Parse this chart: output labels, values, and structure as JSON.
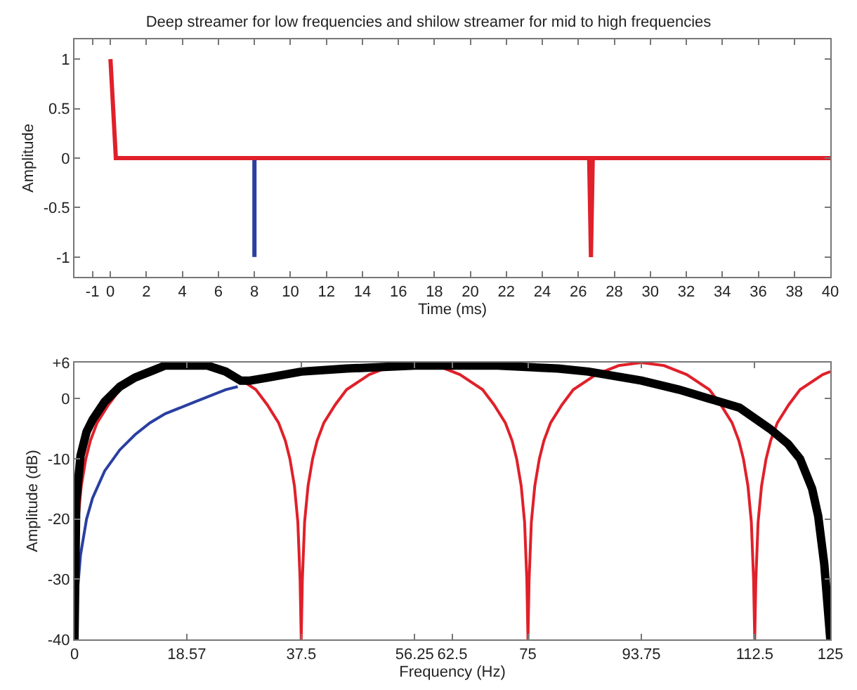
{
  "chart_data": [
    {
      "type": "line",
      "title": "Deep streamer for low frequencies and shilow streamer for mid to high frequencies",
      "xlabel": "Time (ms)",
      "ylabel": "Amplitude",
      "xlim": [
        -2,
        40
      ],
      "xticks": [
        -1,
        0,
        2,
        4,
        6,
        8,
        10,
        12,
        14,
        16,
        18,
        20,
        22,
        24,
        26,
        28,
        30,
        32,
        34,
        36,
        38,
        40
      ],
      "ylim": [
        -1.2,
        1.2
      ],
      "yticks": [
        -1,
        -0.5,
        0,
        0.5,
        1
      ],
      "grid": false,
      "marker": "none",
      "line_style": "solid",
      "series": [
        {
          "color": "#2a3fa0",
          "x": [
            8,
            8
          ],
          "values": [
            0,
            -1
          ]
        },
        {
          "color": "#e0202a",
          "x": [
            0,
            0.3,
            26.6,
            26.7,
            26.8,
            40
          ],
          "values": [
            1,
            0,
            0,
            -1,
            0,
            0
          ]
        }
      ]
    },
    {
      "type": "line",
      "xlabel": "Frequency (Hz)",
      "ylabel": "Amplitude (dB)",
      "xlim": [
        0,
        125
      ],
      "xticks": [
        0,
        18.57,
        37.5,
        56.25,
        62.5,
        75,
        93.75,
        112.5,
        125
      ],
      "ylim": [
        -40,
        6
      ],
      "yticks": [
        -40,
        -30,
        -20,
        -10,
        0,
        {
          "value": 6,
          "label": "+6"
        }
      ],
      "grid": false,
      "marker": "none",
      "line_style": "solid",
      "series": [
        {
          "color": "#e0202a",
          "x": [
            0,
            0.19,
            0.56,
            1.13,
            1.88,
            2.63,
            3.75,
            5.63,
            7.5,
            11.25,
            15,
            18.75,
            22.5,
            26.25,
            30,
            31.88,
            33.75,
            34.88,
            35.63,
            36.38,
            36.94,
            37.31,
            37.5,
            37.69,
            38.06,
            38.63,
            39.38,
            40.13,
            41.25,
            43.13,
            45,
            48.75,
            52.5,
            56.25,
            60,
            63.75,
            67.5,
            69.38,
            71.25,
            72.38,
            73.13,
            73.88,
            74.44,
            74.81,
            75,
            75.19,
            75.56,
            76.13,
            76.88,
            77.63,
            78.75,
            80.63,
            82.5,
            86.25,
            90,
            93.75,
            97.5,
            101.25,
            105,
            106.88,
            108.75,
            109.88,
            110.63,
            111.38,
            111.94,
            112.31,
            112.5,
            112.69,
            113.06,
            113.63,
            114.38,
            115.13,
            116.25,
            118.13,
            120,
            123.75,
            125
          ],
          "values": [
            -40,
            -30,
            -20.5,
            -14.5,
            -10,
            -7,
            -4,
            -1,
            1.5,
            4,
            5.5,
            6,
            5.5,
            4,
            1.5,
            -1,
            -4,
            -7,
            -10,
            -14.5,
            -20.5,
            -30,
            -40,
            -30,
            -20.5,
            -14.5,
            -10,
            -7,
            -4,
            -1,
            1.5,
            4,
            5.5,
            6,
            5.5,
            4,
            1.5,
            -1,
            -4,
            -7,
            -10,
            -14.5,
            -20.5,
            -30,
            -40,
            -30,
            -20.5,
            -14.5,
            -10,
            -7,
            -4,
            -1,
            1.5,
            4,
            5.5,
            6,
            5.5,
            4,
            1.5,
            -1,
            -4,
            -7,
            -10,
            -14.5,
            -20.5,
            -30,
            -40,
            -30,
            -20.5,
            -14.5,
            -10,
            -7,
            -4,
            -1,
            1.5,
            4,
            4.5
          ]
        },
        {
          "color": "#2a3fa0",
          "x": [
            0,
            0.5,
            1,
            2,
            3,
            5,
            7.5,
            10,
            12.5,
            15,
            20,
            25,
            27
          ],
          "values": [
            -40,
            -32,
            -26,
            -20,
            -16.5,
            -12,
            -8.5,
            -6,
            -4,
            -2.5,
            -0.5,
            1.5,
            2
          ]
        },
        {
          "color": "#000000",
          "x": [
            0,
            0.3,
            1,
            2,
            3,
            5,
            7.5,
            10,
            12.5,
            15,
            18.57,
            22,
            25,
            27.5,
            29,
            32,
            37.5,
            45,
            56.25,
            62.5,
            70,
            80,
            85,
            93.75,
            100,
            105,
            110,
            115,
            118,
            120,
            122,
            123,
            124,
            125
          ],
          "values": [
            -40,
            -17,
            -9.5,
            -5.5,
            -3.5,
            -0.5,
            2,
            3.5,
            4.5,
            5.5,
            5.5,
            5.5,
            4.5,
            3,
            3,
            3.5,
            4.5,
            5,
            5.5,
            5.5,
            5.5,
            5,
            4.5,
            3,
            1.5,
            0,
            -1.5,
            -5,
            -7.5,
            -10,
            -15,
            -19.5,
            -27.5,
            -40
          ]
        }
      ]
    }
  ]
}
